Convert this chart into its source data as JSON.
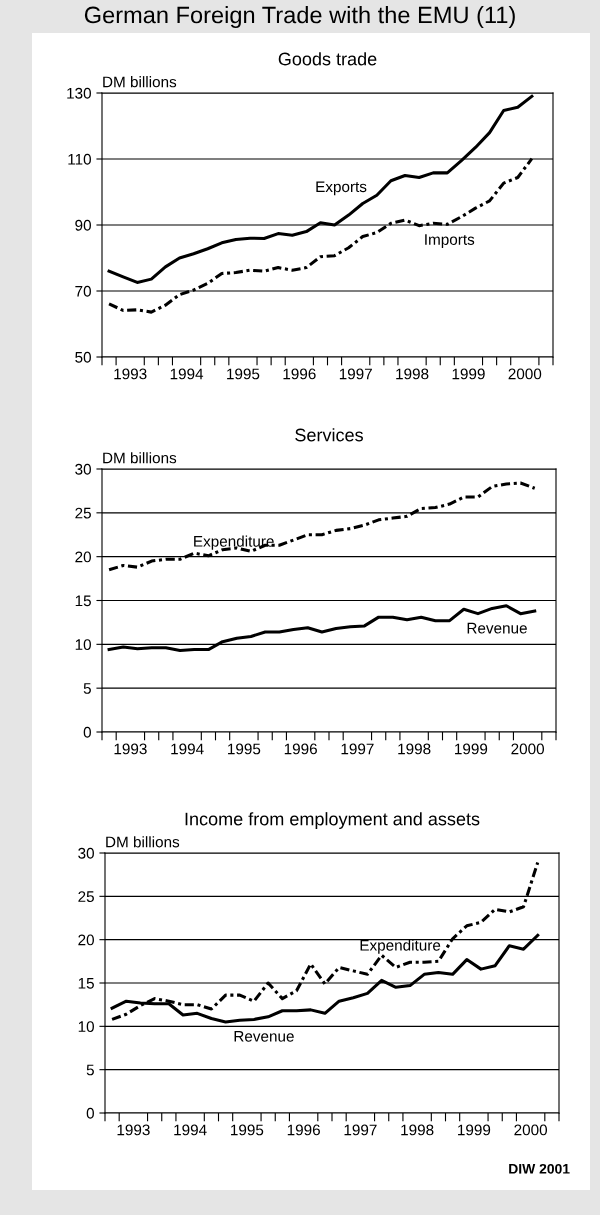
{
  "chart_data": [
    {
      "type": "line",
      "title": "Goods trade",
      "ylabel": "DM billions",
      "annotations": [
        "German Foreign Trade with the EMU (11)"
      ],
      "x": [
        1993.125,
        1993.375,
        1993.625,
        1993.875,
        1994.125,
        1994.375,
        1994.625,
        1994.875,
        1995.125,
        1995.375,
        1995.625,
        1995.875,
        1996.125,
        1996.375,
        1996.625,
        1996.875,
        1997.125,
        1997.375,
        1997.625,
        1997.875,
        1998.125,
        1998.375,
        1998.625,
        1998.875,
        1999.125,
        1999.375,
        1999.625,
        1999.875,
        2000.125,
        2000.375,
        2000.625
      ],
      "series": [
        {
          "name": "Exports",
          "color": "#000000",
          "line_style": "solid",
          "values": [
            76.0,
            74.3,
            72.6,
            73.6,
            77.3,
            80.0,
            81.3,
            82.8,
            84.6,
            85.6,
            86.0,
            85.9,
            87.4,
            86.9,
            88.0,
            90.7,
            90.0,
            93.0,
            96.5,
            99.0,
            103.4,
            105.0,
            104.4,
            105.8,
            105.8,
            109.5,
            113.5,
            118.0,
            124.7,
            125.7,
            129.0
          ]
        },
        {
          "name": "Imports",
          "color": "#000000",
          "line_style": "dashdot",
          "values": [
            66.1,
            64.1,
            64.3,
            63.6,
            65.7,
            68.9,
            70.3,
            72.3,
            75.3,
            75.6,
            76.3,
            76.0,
            77.1,
            76.3,
            77.1,
            80.4,
            80.7,
            83.1,
            86.5,
            87.7,
            90.5,
            91.5,
            89.8,
            90.5,
            90.2,
            92.5,
            95.1,
            97.3,
            102.7,
            104.4,
            110.1
          ]
        }
      ],
      "xlim": [
        1993,
        2001
      ],
      "xticks": [
        {
          "value": 1993,
          "label": null
        },
        {
          "value": 1993.25,
          "label": null
        },
        {
          "value": 1993.5,
          "label": "1993"
        },
        {
          "value": 1993.75,
          "label": null
        },
        {
          "value": 1994,
          "label": null
        },
        {
          "value": 1994.25,
          "label": null
        },
        {
          "value": 1994.5,
          "label": "1994"
        },
        {
          "value": 1994.75,
          "label": null
        },
        {
          "value": 1995,
          "label": null
        },
        {
          "value": 1995.25,
          "label": null
        },
        {
          "value": 1995.5,
          "label": "1995"
        },
        {
          "value": 1995.75,
          "label": null
        },
        {
          "value": 1996,
          "label": null
        },
        {
          "value": 1996.25,
          "label": null
        },
        {
          "value": 1996.5,
          "label": "1996"
        },
        {
          "value": 1996.75,
          "label": null
        },
        {
          "value": 1997,
          "label": null
        },
        {
          "value": 1997.25,
          "label": null
        },
        {
          "value": 1997.5,
          "label": "1997"
        },
        {
          "value": 1997.75,
          "label": null
        },
        {
          "value": 1998,
          "label": null
        },
        {
          "value": 1998.25,
          "label": null
        },
        {
          "value": 1998.5,
          "label": "1998"
        },
        {
          "value": 1998.75,
          "label": null
        },
        {
          "value": 1999,
          "label": null
        },
        {
          "value": 1999.25,
          "label": null
        },
        {
          "value": 1999.5,
          "label": "1999"
        },
        {
          "value": 1999.75,
          "label": null
        },
        {
          "value": 2000,
          "label": null
        },
        {
          "value": 2000.25,
          "label": null
        },
        {
          "value": 2000.5,
          "label": "2000"
        },
        {
          "value": 2000.75,
          "label": null
        },
        {
          "value": 2001,
          "label": null
        }
      ],
      "ylim": [
        50,
        130
      ],
      "yticks": [
        50,
        70,
        90,
        110,
        130
      ],
      "grid": "y",
      "legend": false
    },
    {
      "type": "line",
      "title": "Services",
      "ylabel": "DM billions",
      "x": [
        1993.125,
        1993.375,
        1993.625,
        1993.875,
        1994.125,
        1994.375,
        1994.625,
        1994.875,
        1995.125,
        1995.375,
        1995.625,
        1995.875,
        1996.125,
        1996.375,
        1996.625,
        1996.875,
        1997.125,
        1997.375,
        1997.625,
        1997.875,
        1998.125,
        1998.375,
        1998.625,
        1998.875,
        1999.125,
        1999.375,
        1999.625,
        1999.875,
        2000.125,
        2000.375,
        2000.625
      ],
      "series": [
        {
          "name": "Expenditure",
          "color": "#000000",
          "line_style": "dashdot",
          "values": [
            18.5,
            19.0,
            18.8,
            19.5,
            19.7,
            19.7,
            20.4,
            20.1,
            20.8,
            21.0,
            20.6,
            21.3,
            21.3,
            21.9,
            22.5,
            22.5,
            23.0,
            23.2,
            23.6,
            24.2,
            24.4,
            24.6,
            25.5,
            25.6,
            26.0,
            26.8,
            26.8,
            28.0,
            28.3,
            28.4,
            27.8
          ]
        },
        {
          "name": "Revenue",
          "color": "#000000",
          "line_style": "solid",
          "values": [
            9.4,
            9.7,
            9.5,
            9.6,
            9.6,
            9.3,
            9.4,
            9.4,
            10.3,
            10.7,
            10.9,
            11.4,
            11.4,
            11.7,
            11.9,
            11.4,
            11.8,
            12.0,
            12.1,
            13.1,
            13.1,
            12.8,
            13.1,
            12.7,
            12.7,
            14.0,
            13.5,
            14.1,
            14.4,
            13.5,
            13.8
          ]
        }
      ],
      "xlim": [
        1993,
        2001
      ],
      "xticks": [
        {
          "value": 1993,
          "label": null
        },
        {
          "value": 1993.25,
          "label": null
        },
        {
          "value": 1993.5,
          "label": "1993"
        },
        {
          "value": 1993.75,
          "label": null
        },
        {
          "value": 1994,
          "label": null
        },
        {
          "value": 1994.25,
          "label": null
        },
        {
          "value": 1994.5,
          "label": "1994"
        },
        {
          "value": 1994.75,
          "label": null
        },
        {
          "value": 1995,
          "label": null
        },
        {
          "value": 1995.25,
          "label": null
        },
        {
          "value": 1995.5,
          "label": "1995"
        },
        {
          "value": 1995.75,
          "label": null
        },
        {
          "value": 1996,
          "label": null
        },
        {
          "value": 1996.25,
          "label": null
        },
        {
          "value": 1996.5,
          "label": "1996"
        },
        {
          "value": 1996.75,
          "label": null
        },
        {
          "value": 1997,
          "label": null
        },
        {
          "value": 1997.25,
          "label": null
        },
        {
          "value": 1997.5,
          "label": "1997"
        },
        {
          "value": 1997.75,
          "label": null
        },
        {
          "value": 1998,
          "label": null
        },
        {
          "value": 1998.25,
          "label": null
        },
        {
          "value": 1998.5,
          "label": "1998"
        },
        {
          "value": 1998.75,
          "label": null
        },
        {
          "value": 1999,
          "label": null
        },
        {
          "value": 1999.25,
          "label": null
        },
        {
          "value": 1999.5,
          "label": "1999"
        },
        {
          "value": 1999.75,
          "label": null
        },
        {
          "value": 2000,
          "label": null
        },
        {
          "value": 2000.25,
          "label": null
        },
        {
          "value": 2000.5,
          "label": "2000"
        },
        {
          "value": 2000.75,
          "label": null
        },
        {
          "value": 2001,
          "label": null
        }
      ],
      "ylim": [
        0,
        30
      ],
      "yticks": [
        0,
        5,
        10,
        15,
        20,
        25,
        30
      ],
      "grid": "y",
      "legend": false
    },
    {
      "type": "line",
      "title": "Income from employment and assets",
      "ylabel": "DM billions",
      "annotations": [
        "DIW 2001"
      ],
      "x": [
        1993.125,
        1993.375,
        1993.625,
        1993.875,
        1994.125,
        1994.375,
        1994.625,
        1994.875,
        1995.125,
        1995.375,
        1995.625,
        1995.875,
        1996.125,
        1996.375,
        1996.625,
        1996.875,
        1997.125,
        1997.375,
        1997.625,
        1997.875,
        1998.125,
        1998.375,
        1998.625,
        1998.875,
        1999.125,
        1999.375,
        1999.625,
        1999.875,
        2000.125,
        2000.375,
        2000.625
      ],
      "series": [
        {
          "name": "Expenditure",
          "color": "#000000",
          "line_style": "dashdot",
          "values": [
            10.8,
            11.4,
            12.4,
            13.2,
            12.9,
            12.5,
            12.5,
            12.0,
            13.6,
            13.6,
            12.9,
            15.0,
            13.2,
            14.1,
            17.2,
            14.9,
            16.8,
            16.4,
            16.0,
            18.2,
            16.8,
            17.4,
            17.4,
            17.5,
            20.1,
            21.6,
            22.0,
            23.5,
            23.2,
            23.8,
            28.9
          ]
        },
        {
          "name": "Revenue",
          "color": "#000000",
          "line_style": "solid",
          "values": [
            12.1,
            12.9,
            12.7,
            12.6,
            12.6,
            11.3,
            11.5,
            10.9,
            10.5,
            10.7,
            10.8,
            11.1,
            11.8,
            11.8,
            11.9,
            11.5,
            12.9,
            13.3,
            13.8,
            15.3,
            14.5,
            14.7,
            16.0,
            16.2,
            16.0,
            17.7,
            16.6,
            17.0,
            19.3,
            18.9,
            20.5
          ]
        }
      ],
      "xlim": [
        1993,
        2001
      ],
      "xticks": [
        {
          "value": 1993,
          "label": null
        },
        {
          "value": 1993.25,
          "label": null
        },
        {
          "value": 1993.5,
          "label": "1993"
        },
        {
          "value": 1993.75,
          "label": null
        },
        {
          "value": 1994,
          "label": null
        },
        {
          "value": 1994.25,
          "label": null
        },
        {
          "value": 1994.5,
          "label": "1994"
        },
        {
          "value": 1994.75,
          "label": null
        },
        {
          "value": 1995,
          "label": null
        },
        {
          "value": 1995.25,
          "label": null
        },
        {
          "value": 1995.5,
          "label": "1995"
        },
        {
          "value": 1995.75,
          "label": null
        },
        {
          "value": 1996,
          "label": null
        },
        {
          "value": 1996.25,
          "label": null
        },
        {
          "value": 1996.5,
          "label": "1996"
        },
        {
          "value": 1996.75,
          "label": null
        },
        {
          "value": 1997,
          "label": null
        },
        {
          "value": 1997.25,
          "label": null
        },
        {
          "value": 1997.5,
          "label": "1997"
        },
        {
          "value": 1997.75,
          "label": null
        },
        {
          "value": 1998,
          "label": null
        },
        {
          "value": 1998.25,
          "label": null
        },
        {
          "value": 1998.5,
          "label": "1998"
        },
        {
          "value": 1998.75,
          "label": null
        },
        {
          "value": 1999,
          "label": null
        },
        {
          "value": 1999.25,
          "label": null
        },
        {
          "value": 1999.5,
          "label": "1999"
        },
        {
          "value": 1999.75,
          "label": null
        },
        {
          "value": 2000,
          "label": null
        },
        {
          "value": 2000.25,
          "label": null
        },
        {
          "value": 2000.5,
          "label": "2000"
        },
        {
          "value": 2000.75,
          "label": null
        },
        {
          "value": 2001,
          "label": null
        }
      ],
      "ylim": [
        0,
        30
      ],
      "yticks": [
        0,
        5,
        10,
        15,
        20,
        25,
        30
      ],
      "grid": "y",
      "legend": false
    }
  ]
}
